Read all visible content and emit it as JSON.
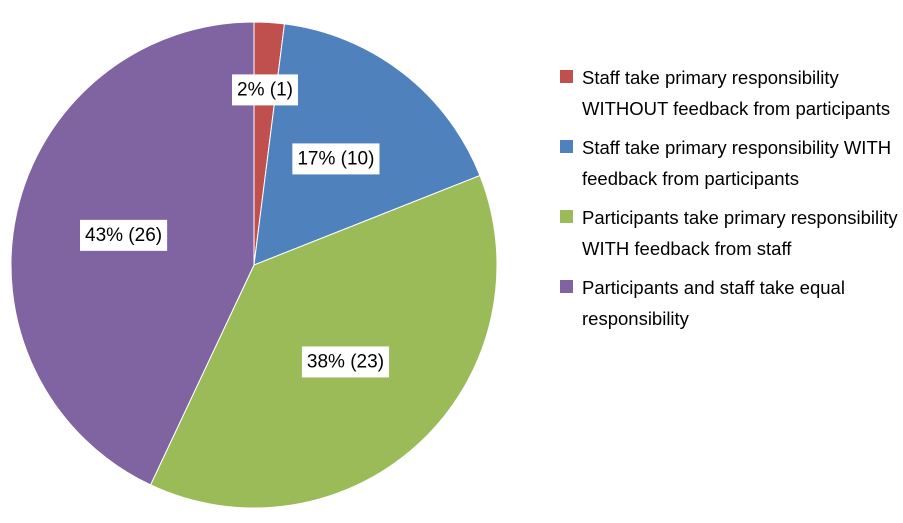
{
  "chart_data": {
    "type": "pie",
    "categories": [
      "Staff take primary responsibility WITHOUT feedback from participants",
      "Staff take primary responsibility WITH feedback from participants",
      "Participants take primary responsibility WITH feedback from staff",
      "Participants and staff take equal responsibility"
    ],
    "values": [
      2,
      17,
      38,
      43
    ],
    "value_labels": [
      "2% (1)",
      "17% (10)",
      "38% (23)",
      "43% (26)"
    ],
    "colors": [
      "#c0504d",
      "#4f81bd",
      "#9bbb59",
      "#8064a2"
    ],
    "legend": "right"
  }
}
